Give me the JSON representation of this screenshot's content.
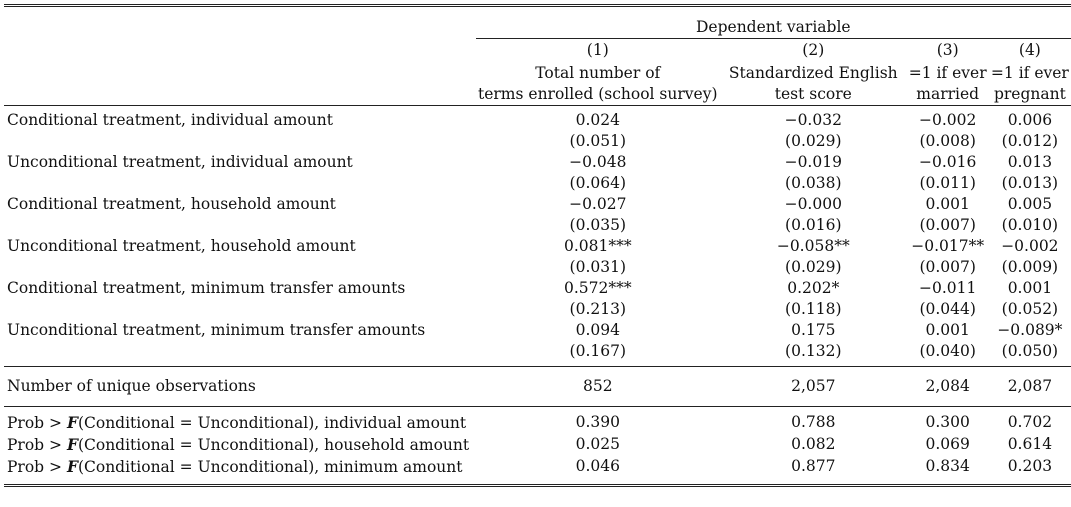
{
  "header": {
    "dependent_variable": "Dependent variable",
    "col_numbers": [
      "(1)",
      "(2)",
      "(3)",
      "(4)"
    ],
    "col_titles_line1": [
      "Total number of",
      "Standardized English",
      "=1 if ever",
      "=1 if ever"
    ],
    "col_titles_line2": [
      "terms enrolled (school survey)",
      "test score",
      "married",
      "pregnant"
    ]
  },
  "rows": [
    {
      "label": "Conditional treatment, individual amount",
      "coef": [
        "0.024",
        "−0.032",
        "−0.002",
        "0.006"
      ],
      "se": [
        "(0.051)",
        "(0.029)",
        "(0.008)",
        "(0.012)"
      ]
    },
    {
      "label": "Unconditional treatment, individual amount",
      "coef": [
        "−0.048",
        "−0.019",
        "−0.016",
        "0.013"
      ],
      "se": [
        "(0.064)",
        "(0.038)",
        "(0.011)",
        "(0.013)"
      ]
    },
    {
      "label": "Conditional treatment, household amount",
      "coef": [
        "−0.027",
        "−0.000",
        "0.001",
        "0.005"
      ],
      "se": [
        "(0.035)",
        "(0.016)",
        "(0.007)",
        "(0.010)"
      ]
    },
    {
      "label": "Unconditional treatment, household amount",
      "coef": [
        "0.081***",
        "−0.058**",
        "−0.017**",
        "−0.002"
      ],
      "se": [
        "(0.031)",
        "(0.029)",
        "(0.007)",
        "(0.009)"
      ]
    },
    {
      "label": "Conditional treatment, minimum transfer amounts",
      "coef": [
        "0.572***",
        "0.202*",
        "−0.011",
        "0.001"
      ],
      "se": [
        "(0.213)",
        "(0.118)",
        "(0.044)",
        "(0.052)"
      ]
    },
    {
      "label": "Unconditional treatment, minimum transfer amounts",
      "coef": [
        "0.094",
        "0.175",
        "0.001",
        "−0.089*"
      ],
      "se": [
        "(0.167)",
        "(0.132)",
        "(0.040)",
        "(0.050)"
      ]
    }
  ],
  "observations": {
    "label": "Number of unique observations",
    "values": [
      "852",
      "2,057",
      "2,084",
      "2,087"
    ]
  },
  "tests": [
    {
      "prefix": "Prob > ",
      "F": "F",
      "suffix": "(Conditional = Unconditional), individual amount",
      "values": [
        "0.390",
        "0.788",
        "0.300",
        "0.702"
      ]
    },
    {
      "prefix": "Prob > ",
      "F": "F",
      "suffix": "(Conditional = Unconditional), household amount",
      "values": [
        "0.025",
        "0.082",
        "0.069",
        "0.614"
      ]
    },
    {
      "prefix": "Prob > ",
      "F": "F",
      "suffix": "(Conditional = Unconditional), minimum amount",
      "values": [
        "0.046",
        "0.877",
        "0.834",
        "0.203"
      ]
    }
  ]
}
